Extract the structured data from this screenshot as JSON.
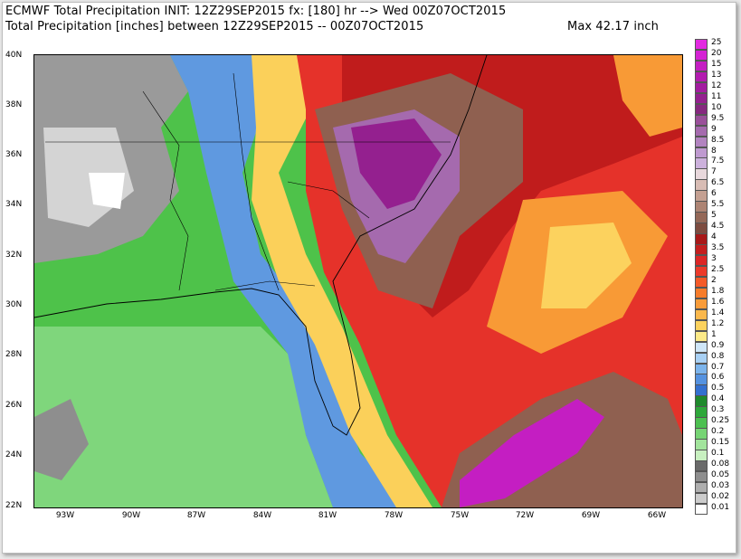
{
  "header": {
    "line1": "ECMWF Total Precipitation INIT: 12Z29SEP2015 fx: [180] hr --> Wed 00Z07OCT2015",
    "line2": "Total Precipitation [inches] between 12Z29SEP2015 -- 00Z07OCT2015",
    "max": "Max 42.17 inch"
  },
  "lat_labels": [
    "40N",
    "38N",
    "36N",
    "34N",
    "32N",
    "30N",
    "28N",
    "26N",
    "24N",
    "22N"
  ],
  "lon_labels": [
    "93W",
    "90W",
    "87W",
    "84W",
    "81W",
    "78W",
    "75W",
    "72W",
    "69W",
    "66W"
  ],
  "legend": [
    {
      "label": "25",
      "color": "#e22ae0"
    },
    {
      "label": "20",
      "color": "#d522d4"
    },
    {
      "label": "15",
      "color": "#c41ec2"
    },
    {
      "label": "13",
      "color": "#b31cb0"
    },
    {
      "label": "12",
      "color": "#a31ca0"
    },
    {
      "label": "11",
      "color": "#94208f"
    },
    {
      "label": "10",
      "color": "#86287f"
    },
    {
      "label": "9.5",
      "color": "#9a4f9a"
    },
    {
      "label": "9",
      "color": "#a56aae"
    },
    {
      "label": "8.5",
      "color": "#b283c0"
    },
    {
      "label": "8",
      "color": "#bf9ad0"
    },
    {
      "label": "7.5",
      "color": "#ccb1dc"
    },
    {
      "label": "7",
      "color": "#e8d8dc"
    },
    {
      "label": "6.5",
      "color": "#d8bcb4"
    },
    {
      "label": "6",
      "color": "#c4a092"
    },
    {
      "label": "5.5",
      "color": "#ad8474"
    },
    {
      "label": "5",
      "color": "#946858"
    },
    {
      "label": "4.5",
      "color": "#7d4c40"
    },
    {
      "label": "4",
      "color": "#a81818"
    },
    {
      "label": "3.5",
      "color": "#c41e1e"
    },
    {
      "label": "3",
      "color": "#dc2626"
    },
    {
      "label": "2.5",
      "color": "#ec3a2a"
    },
    {
      "label": "2",
      "color": "#f45a28"
    },
    {
      "label": "1.8",
      "color": "#f77c2a"
    },
    {
      "label": "1.6",
      "color": "#f99c3a"
    },
    {
      "label": "1.4",
      "color": "#fbb84c"
    },
    {
      "label": "1.2",
      "color": "#fcd25e"
    },
    {
      "label": "1",
      "color": "#fdea88"
    },
    {
      "label": "0.9",
      "color": "#cfe6f8"
    },
    {
      "label": "0.8",
      "color": "#a8d0f4"
    },
    {
      "label": "0.7",
      "color": "#7cb4ec"
    },
    {
      "label": "0.6",
      "color": "#5592e0"
    },
    {
      "label": "0.5",
      "color": "#3470d0"
    },
    {
      "label": "0.4",
      "color": "#1f8a2c"
    },
    {
      "label": "0.3",
      "color": "#2ea83a"
    },
    {
      "label": "0.25",
      "color": "#4cc050"
    },
    {
      "label": "0.2",
      "color": "#76d474"
    },
    {
      "label": "0.15",
      "color": "#a2e49c"
    },
    {
      "label": "0.1",
      "color": "#c8f0c0"
    },
    {
      "label": "0.08",
      "color": "#6a6a6a"
    },
    {
      "label": "0.05",
      "color": "#8e8e8e"
    },
    {
      "label": "0.03",
      "color": "#aeaeae"
    },
    {
      "label": "0.02",
      "color": "#cccccc"
    },
    {
      "label": "0.01",
      "color": "#ffffff"
    }
  ]
}
